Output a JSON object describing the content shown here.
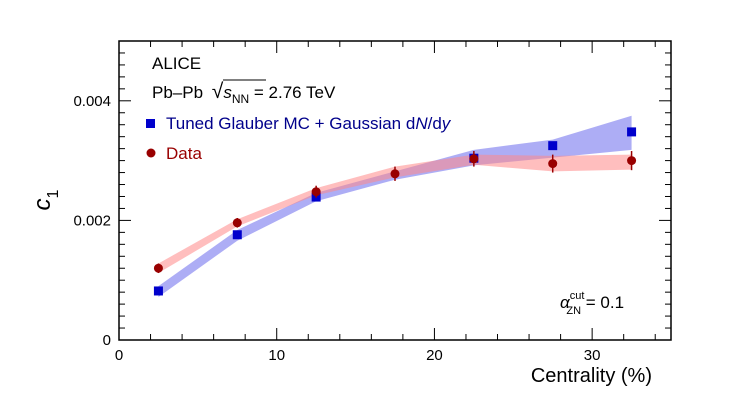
{
  "chart_data": {
    "type": "scatter",
    "x_label": "Centrality (%)",
    "y_label_main": "c",
    "y_label_sub": "1",
    "xlim": [
      0,
      35
    ],
    "ylim": [
      0,
      0.005
    ],
    "x_ticks": [
      0,
      10,
      20,
      30
    ],
    "x_tick_labels": [
      "0",
      "10",
      "20",
      "30"
    ],
    "y_ticks": [
      0,
      0.002,
      0.004
    ],
    "y_tick_labels": [
      "0",
      "0.002",
      "0.004"
    ],
    "annotations": {
      "experiment": "ALICE",
      "system": "Pb–Pb",
      "sqrt_symbol": "√",
      "s_symbol": "s",
      "nn_sub": "NN",
      "energy": " = 2.76 TeV",
      "alpha_symbol": "α",
      "alpha_sup": "cut",
      "alpha_sub": "ZN",
      "alpha_value": " = 0.1"
    },
    "legend": {
      "position": "top-left",
      "model_label_part1": "Tuned Glauber MC + Gaussian d",
      "model_label_N": "N",
      "model_label_part2": "/d",
      "model_label_y": "y",
      "data_label": "Data"
    },
    "series": [
      {
        "name": "Tuned Glauber MC + Gaussian dN/dy",
        "marker": "square",
        "color": "#0000cc",
        "band_color": "#7777ee",
        "x": [
          2.5,
          7.5,
          12.5,
          17.5,
          22.5,
          27.5,
          32.5
        ],
        "values": [
          0.00082,
          0.00176,
          0.00239,
          null,
          0.00304,
          0.00325,
          0.00348
        ],
        "band_x": [
          2.5,
          7.5,
          12.5,
          17.5,
          22.5,
          27.5,
          32.5
        ],
        "band_low": [
          0.00072,
          0.00166,
          0.00232,
          0.00268,
          0.00292,
          0.00305,
          0.00318
        ],
        "band_high": [
          0.0009,
          0.00184,
          0.00246,
          0.00282,
          0.00318,
          0.00335,
          0.00375
        ]
      },
      {
        "name": "Data",
        "marker": "circle",
        "color": "#990000",
        "band_color": "#ff8888",
        "x": [
          2.5,
          7.5,
          12.5,
          17.5,
          22.5,
          27.5,
          32.5
        ],
        "values": [
          0.0012,
          0.00196,
          0.00248,
          0.00278,
          0.00303,
          0.00295,
          0.003
        ],
        "errors": [
          8e-05,
          8e-05,
          0.0001,
          0.00012,
          0.00013,
          0.00015,
          0.00016
        ],
        "band_x": [
          2.5,
          7.5,
          12.5,
          17.5,
          22.5,
          27.5,
          32.5
        ],
        "band_low": [
          0.00112,
          0.0019,
          0.00242,
          0.00272,
          0.00293,
          0.00282,
          0.00285
        ],
        "band_high": [
          0.00128,
          0.00202,
          0.00254,
          0.0029,
          0.0031,
          0.00308,
          0.0031
        ]
      }
    ]
  }
}
